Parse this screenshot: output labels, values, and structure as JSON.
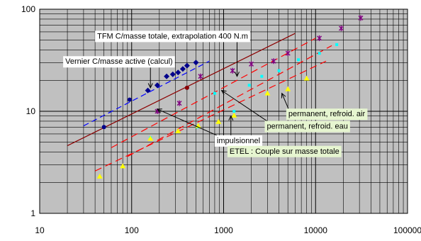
{
  "chart_data": {
    "type": "scatter",
    "title": "",
    "xlabel": "",
    "ylabel": "",
    "x_scale": "log",
    "y_scale": "log",
    "xlim": [
      10,
      100000
    ],
    "ylim": [
      1,
      100
    ],
    "x_ticks": [
      "10",
      "100",
      "1000",
      "10000",
      "100000"
    ],
    "y_ticks": [
      "1",
      "10",
      "100"
    ],
    "grid": true,
    "legend": "none",
    "colors": {
      "plot_bg": "#c0c0c0",
      "grid": "#000000",
      "vernier": "#00008b",
      "vernier_calc": "#0000ff",
      "tfm": "#8b0000",
      "impulsionnel": "#ff0000",
      "refroid_eau": "#00ffff",
      "refroid_air": "#800080",
      "etel": "#ffff00",
      "annotation_bg": "#ffffff",
      "annotation_bg_green": "#e6f5d0"
    },
    "series": [
      {
        "key": "vernier",
        "marker": "circle",
        "color": "#00008b",
        "points": [
          [
            50,
            7
          ],
          [
            95,
            13
          ],
          [
            400,
            17
          ]
        ]
      },
      {
        "key": "vernier_calc",
        "marker": "diamond",
        "color": "#00008b",
        "points": [
          [
            150,
            16
          ],
          [
            190,
            18
          ],
          [
            240,
            22
          ],
          [
            280,
            23
          ],
          [
            320,
            24
          ],
          [
            360,
            26
          ],
          [
            400,
            28
          ],
          [
            500,
            30
          ]
        ]
      },
      {
        "key": "tfm",
        "marker": "circle",
        "color": "#8b0000",
        "points": [
          [
            400,
            17
          ]
        ]
      },
      {
        "key": "impulsionnel",
        "marker": "star",
        "color": "#800080",
        "points": [
          [
            190,
            10
          ],
          [
            330,
            12
          ],
          [
            560,
            22
          ],
          [
            1250,
            25
          ],
          [
            2000,
            29
          ],
          [
            3500,
            31
          ],
          [
            5000,
            37
          ],
          [
            11000,
            52
          ],
          [
            19000,
            65
          ],
          [
            31000,
            82
          ]
        ]
      },
      {
        "key": "refroid_eau",
        "marker": "square",
        "color": "#00ffff",
        "points": [
          [
            160,
            5.5
          ],
          [
            520,
            7
          ],
          [
            800,
            15
          ],
          [
            1300,
            10
          ],
          [
            1900,
            18
          ],
          [
            2600,
            22
          ],
          [
            4000,
            25
          ],
          [
            6500,
            32
          ],
          [
            11000,
            37
          ],
          [
            17000,
            45
          ]
        ]
      },
      {
        "key": "etel",
        "marker": "triangle",
        "color": "#ffff00",
        "points": [
          [
            45,
            2.3
          ],
          [
            80,
            2.9
          ],
          [
            160,
            5.4
          ],
          [
            320,
            6.4
          ],
          [
            530,
            7.2
          ],
          [
            880,
            7.9
          ],
          [
            1300,
            9.1
          ],
          [
            3000,
            15
          ],
          [
            5000,
            16.5
          ],
          [
            8000,
            21
          ]
        ]
      }
    ],
    "trendlines": [
      {
        "key": "vernier_fit",
        "color": "#0000ff",
        "dash": "8 5",
        "from": [
          30,
          7.2
        ],
        "to": [
          700,
          31
        ]
      },
      {
        "key": "tfm_fit",
        "color": "#8b0000",
        "dash": "",
        "from": [
          20,
          4.6
        ],
        "to": [
          6000,
          58
        ]
      },
      {
        "key": "red_fit_1",
        "color": "#ff0000",
        "dash": "10 6",
        "from": [
          60,
          4.4
        ],
        "to": [
          10000,
          52
        ]
      },
      {
        "key": "red_fit_2",
        "color": "#ff0000",
        "dash": "10 6",
        "from": [
          90,
          3.6
        ],
        "to": [
          15000,
          44
        ]
      },
      {
        "key": "red_fit_3",
        "color": "#ff0000",
        "dash": "10 6",
        "from": [
          40,
          2.6
        ],
        "to": [
          13000,
          31
        ]
      }
    ],
    "annotations": [
      {
        "key": "tfm",
        "text": "TFM C/masse totale, extrapolation 400 N.m",
        "anchor": [
          40,
          55
        ],
        "bg": "white",
        "target": [
          1400,
          22
        ]
      },
      {
        "key": "vernier",
        "text": "Vernier C/masse active (calcul)",
        "anchor": [
          18,
          31
        ],
        "bg": "white",
        "target": [
          160,
          17
        ]
      },
      {
        "key": "permanent_air",
        "text": "permanent, refroid. air",
        "anchor": [
          4800,
          9.5
        ],
        "bg": "green",
        "target": [
          4300,
          15
        ]
      },
      {
        "key": "permanent_eau",
        "text": "permanent, refroid. eau",
        "anchor": [
          2800,
          7.2
        ],
        "bg": "green",
        "target": [
          950,
          16
        ]
      },
      {
        "key": "impulsionnel",
        "text": "impulsionnel",
        "anchor": [
          800,
          5.2
        ],
        "bg": "white",
        "target": [
          190,
          10.5
        ]
      },
      {
        "key": "etel",
        "text": "ETEL : Couple sur masse totale",
        "anchor": [
          1100,
          4.1
        ],
        "bg": "green",
        "target": [
          1200,
          9
        ]
      }
    ]
  }
}
